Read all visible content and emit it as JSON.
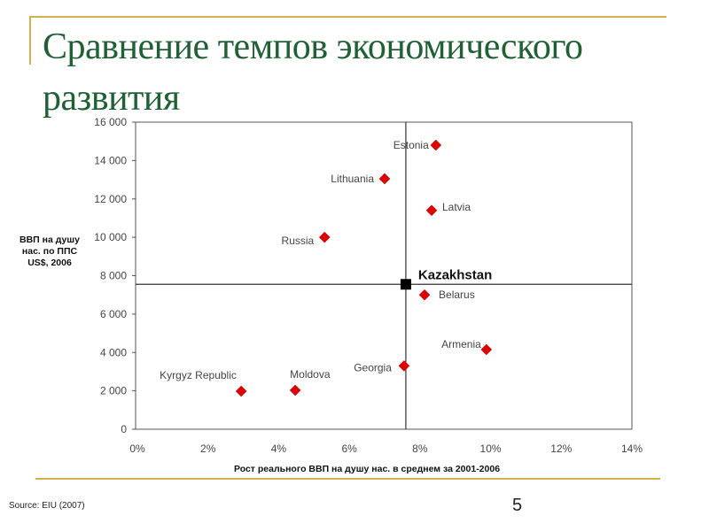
{
  "slide": {
    "title": "Сравнение темпов экономического развития",
    "source": "Source: EIU (2007)",
    "page_number": "5"
  },
  "colors": {
    "title": "#1f6035",
    "accent_line": "#d4b04a",
    "marker": "#e00000",
    "highlight_marker": "#000000"
  },
  "chart_data": {
    "type": "scatter",
    "title": "",
    "xlabel": "Рост реального ВВП на душу нас. в среднем за 2001-2006",
    "ylabel": "ВВП на душу нас. по ППС US$, 2006",
    "xlim": [
      0,
      14
    ],
    "ylim": [
      0,
      16000
    ],
    "x_ticks": [
      0,
      2,
      4,
      6,
      8,
      10,
      12,
      14
    ],
    "x_tick_labels": [
      "0%",
      "2%",
      "4%",
      "6%",
      "8%",
      "10%",
      "12%",
      "14%"
    ],
    "y_ticks": [
      0,
      2000,
      4000,
      6000,
      8000,
      10000,
      12000,
      14000,
      16000
    ],
    "y_tick_labels": [
      "0",
      "2 000",
      "4 000",
      "6 000",
      "8 000",
      "10 000",
      "12 000",
      "14 000",
      "16 000"
    ],
    "grid": false,
    "reference_lines": {
      "x": 7.6,
      "y": 7550
    },
    "points": [
      {
        "label": "Estonia",
        "x": 8.45,
        "y": 14800
      },
      {
        "label": "Lithuania",
        "x": 7.0,
        "y": 13050
      },
      {
        "label": "Latvia",
        "x": 8.33,
        "y": 11400
      },
      {
        "label": "Russia",
        "x": 5.3,
        "y": 10000
      },
      {
        "label": "Kazakhstan",
        "x": 7.6,
        "y": 7550,
        "highlight": true
      },
      {
        "label": "Belarus",
        "x": 8.13,
        "y": 7000
      },
      {
        "label": "Armenia",
        "x": 9.88,
        "y": 4150
      },
      {
        "label": "Georgia",
        "x": 7.55,
        "y": 3300
      },
      {
        "label": "Moldova",
        "x": 4.47,
        "y": 2030
      },
      {
        "label": "Kyrgyz Republic",
        "x": 2.94,
        "y": 1980
      }
    ]
  }
}
